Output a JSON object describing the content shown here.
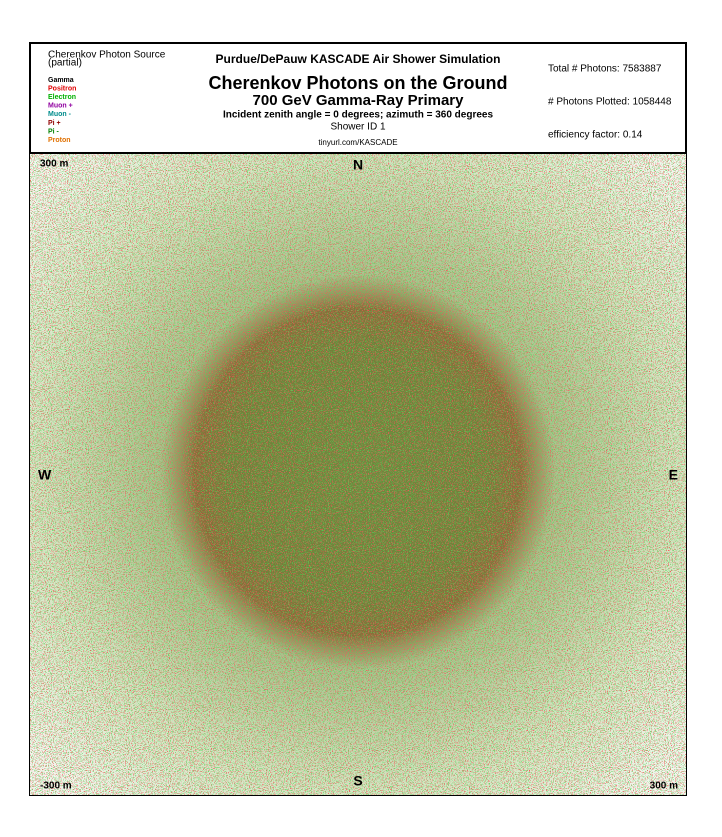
{
  "legend": {
    "title": "Cherenkov Photon Source",
    "subtitle": "(partial)",
    "items": [
      {
        "name": "Gamma",
        "color": "#000000"
      },
      {
        "name": "Positron",
        "color": "#e00000"
      },
      {
        "name": "Electron",
        "color": "#00b000"
      },
      {
        "name": "Muon +",
        "color": "#9000a0"
      },
      {
        "name": "Muon -",
        "color": "#008c8c"
      },
      {
        "name": "Pi +",
        "color": "#900000"
      },
      {
        "name": "Pi -",
        "color": "#008000"
      },
      {
        "name": "Proton",
        "color": "#e07000"
      }
    ]
  },
  "header": {
    "program": "Purdue/DePauw KASCADE Air Shower Simulation",
    "title": "Cherenkov Photons on the Ground",
    "subtitle": "700 GeV Gamma-Ray Primary",
    "angles": "Incident zenith angle =  0 degrees;  azimuth =  360 degrees",
    "shower_id": "Shower ID 1",
    "url": "tinyurl.com/KASCADE"
  },
  "stats": {
    "total": "Total # Photons: 7583887",
    "plotted": "# Photons Plotted: 1058448",
    "efficiency": "efficiency factor: 0.14"
  },
  "field": {
    "top_left": "300 m",
    "north": "N",
    "west": "W",
    "east": "E",
    "south": "S",
    "bottom_left": "-300 m",
    "bottom_right": "300 m"
  }
}
